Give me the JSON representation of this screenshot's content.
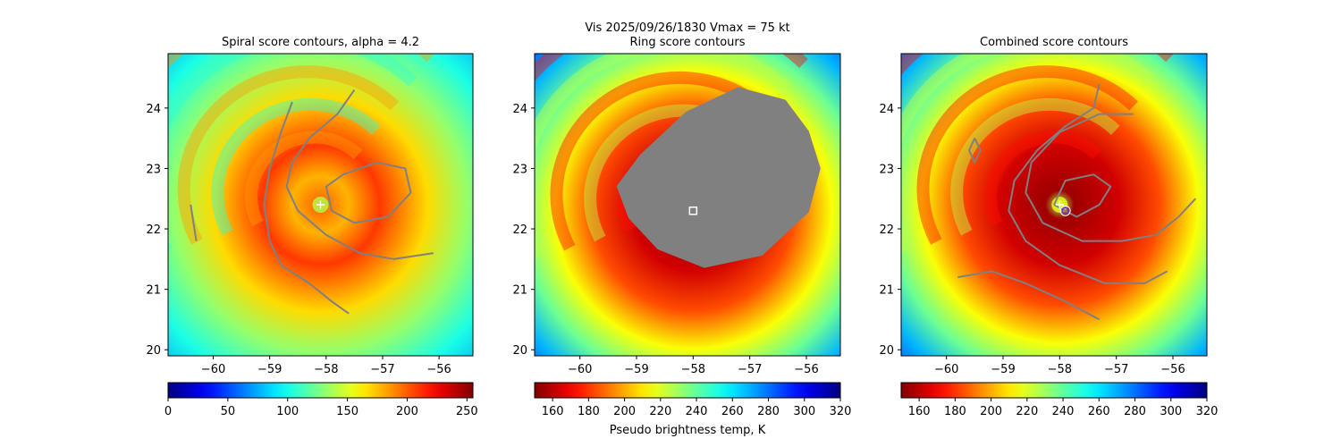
{
  "suptitle": "Vis  2025/09/26/1830    Vmax = 75 kt",
  "colors": {
    "contour": "#808080",
    "marker": "#ffffff",
    "center_marker": "#7a2ea6"
  },
  "chart_data": [
    {
      "type": "heatmap",
      "title": "Spiral score contours, alpha =  4.2",
      "xlim": [
        -60.8,
        -55.4
      ],
      "ylim": [
        19.9,
        24.9
      ],
      "xticks": [
        "-60",
        "-59",
        "-58",
        "-57",
        "-56"
      ],
      "yticks": [
        "20",
        "21",
        "22",
        "23",
        "24"
      ],
      "colormap": "jet",
      "colorbar": {
        "range": [
          0,
          255
        ],
        "ticks": [
          "0",
          "50",
          "100",
          "150",
          "200",
          "250"
        ],
        "label": ""
      },
      "center_marker": {
        "type": "plus",
        "lon": -58.1,
        "lat": 22.4
      },
      "contours": [
        [
          [
            -58.6,
            24.1
          ],
          [
            -58.8,
            23.6
          ],
          [
            -59.0,
            23.0
          ],
          [
            -59.1,
            22.4
          ],
          [
            -59.0,
            21.8
          ],
          [
            -58.8,
            21.4
          ],
          [
            -58.3,
            21.1
          ],
          [
            -57.9,
            20.8
          ],
          [
            -57.6,
            20.6
          ]
        ],
        [
          [
            -57.5,
            24.3
          ],
          [
            -57.8,
            23.9
          ],
          [
            -58.3,
            23.5
          ],
          [
            -58.6,
            23.1
          ],
          [
            -58.7,
            22.7
          ],
          [
            -58.5,
            22.3
          ],
          [
            -58.0,
            21.9
          ],
          [
            -57.4,
            21.6
          ],
          [
            -56.8,
            21.5
          ],
          [
            -56.1,
            21.6
          ]
        ],
        [
          [
            -57.7,
            22.9
          ],
          [
            -57.1,
            23.1
          ],
          [
            -56.6,
            23.0
          ],
          [
            -56.5,
            22.6
          ],
          [
            -56.9,
            22.2
          ],
          [
            -57.5,
            22.1
          ],
          [
            -57.9,
            22.3
          ],
          [
            -58.0,
            22.7
          ],
          [
            -57.7,
            22.9
          ]
        ],
        [
          [
            -60.4,
            22.4
          ],
          [
            -60.35,
            22.1
          ],
          [
            -60.3,
            21.8
          ]
        ]
      ]
    },
    {
      "type": "heatmap",
      "title": "Ring score contours",
      "xlim": [
        -60.8,
        -55.4
      ],
      "ylim": [
        19.9,
        24.9
      ],
      "xticks": [
        "-60",
        "-59",
        "-58",
        "-57",
        "-56"
      ],
      "yticks": [
        "20",
        "21",
        "22",
        "23",
        "24"
      ],
      "colormap": "jet_r",
      "colorbar": {
        "range": [
          150,
          320
        ],
        "ticks": [
          "160",
          "180",
          "200",
          "220",
          "240",
          "260",
          "280",
          "300",
          "320"
        ],
        "label": "Pseudo brightness temp, K"
      },
      "center_marker": {
        "type": "square",
        "lon": -58.0,
        "lat": 22.3
      },
      "contour_region": [
        [
          -58.9,
          23.2
        ],
        [
          -58.1,
          23.9
        ],
        [
          -57.2,
          24.3
        ],
        [
          -56.4,
          24.1
        ],
        [
          -56.0,
          23.6
        ],
        [
          -55.8,
          23.0
        ],
        [
          -56.0,
          22.3
        ],
        [
          -56.8,
          21.6
        ],
        [
          -57.8,
          21.4
        ],
        [
          -58.6,
          21.7
        ],
        [
          -59.1,
          22.2
        ],
        [
          -59.3,
          22.7
        ],
        [
          -58.9,
          23.2
        ]
      ]
    },
    {
      "type": "heatmap",
      "title": "Combined score contours",
      "xlim": [
        -60.8,
        -55.4
      ],
      "ylim": [
        19.9,
        24.9
      ],
      "xticks": [
        "-60",
        "-59",
        "-58",
        "-57",
        "-56"
      ],
      "yticks": [
        "20",
        "21",
        "22",
        "23",
        "24"
      ],
      "colormap": "jet_r",
      "colorbar": {
        "range": [
          150,
          320
        ],
        "ticks": [
          "160",
          "180",
          "200",
          "220",
          "240",
          "260",
          "280",
          "300",
          "320"
        ],
        "label": ""
      },
      "center_marker": {
        "type": "plus",
        "lon": -58.0,
        "lat": 22.4
      },
      "second_marker": {
        "type": "circle",
        "lon": -57.9,
        "lat": 22.3
      },
      "contours": [
        [
          [
            -57.3,
            24.4
          ],
          [
            -57.4,
            24.0
          ],
          [
            -57.9,
            23.7
          ],
          [
            -58.4,
            23.3
          ],
          [
            -58.8,
            22.8
          ],
          [
            -58.9,
            22.3
          ],
          [
            -58.6,
            21.8
          ],
          [
            -58.0,
            21.4
          ],
          [
            -57.2,
            21.1
          ],
          [
            -56.5,
            21.1
          ],
          [
            -56.1,
            21.3
          ]
        ],
        [
          [
            -56.7,
            23.9
          ],
          [
            -57.3,
            23.9
          ],
          [
            -58.0,
            23.6
          ],
          [
            -58.5,
            23.1
          ],
          [
            -58.6,
            22.6
          ],
          [
            -58.3,
            22.1
          ],
          [
            -57.6,
            21.8
          ],
          [
            -56.9,
            21.8
          ],
          [
            -56.3,
            21.9
          ],
          [
            -55.9,
            22.2
          ],
          [
            -55.6,
            22.5
          ]
        ],
        [
          [
            -58.1,
            22.4
          ],
          [
            -57.9,
            22.8
          ],
          [
            -57.4,
            22.9
          ],
          [
            -57.1,
            22.7
          ],
          [
            -57.3,
            22.4
          ],
          [
            -57.7,
            22.2
          ],
          [
            -58.1,
            22.4
          ]
        ],
        [
          [
            -59.8,
            21.2
          ],
          [
            -59.2,
            21.3
          ],
          [
            -58.6,
            21.1
          ],
          [
            -57.9,
            20.8
          ],
          [
            -57.3,
            20.5
          ]
        ],
        [
          [
            -59.5,
            23.5
          ],
          [
            -59.4,
            23.3
          ],
          [
            -59.5,
            23.1
          ],
          [
            -59.6,
            23.3
          ],
          [
            -59.5,
            23.5
          ]
        ]
      ]
    }
  ]
}
